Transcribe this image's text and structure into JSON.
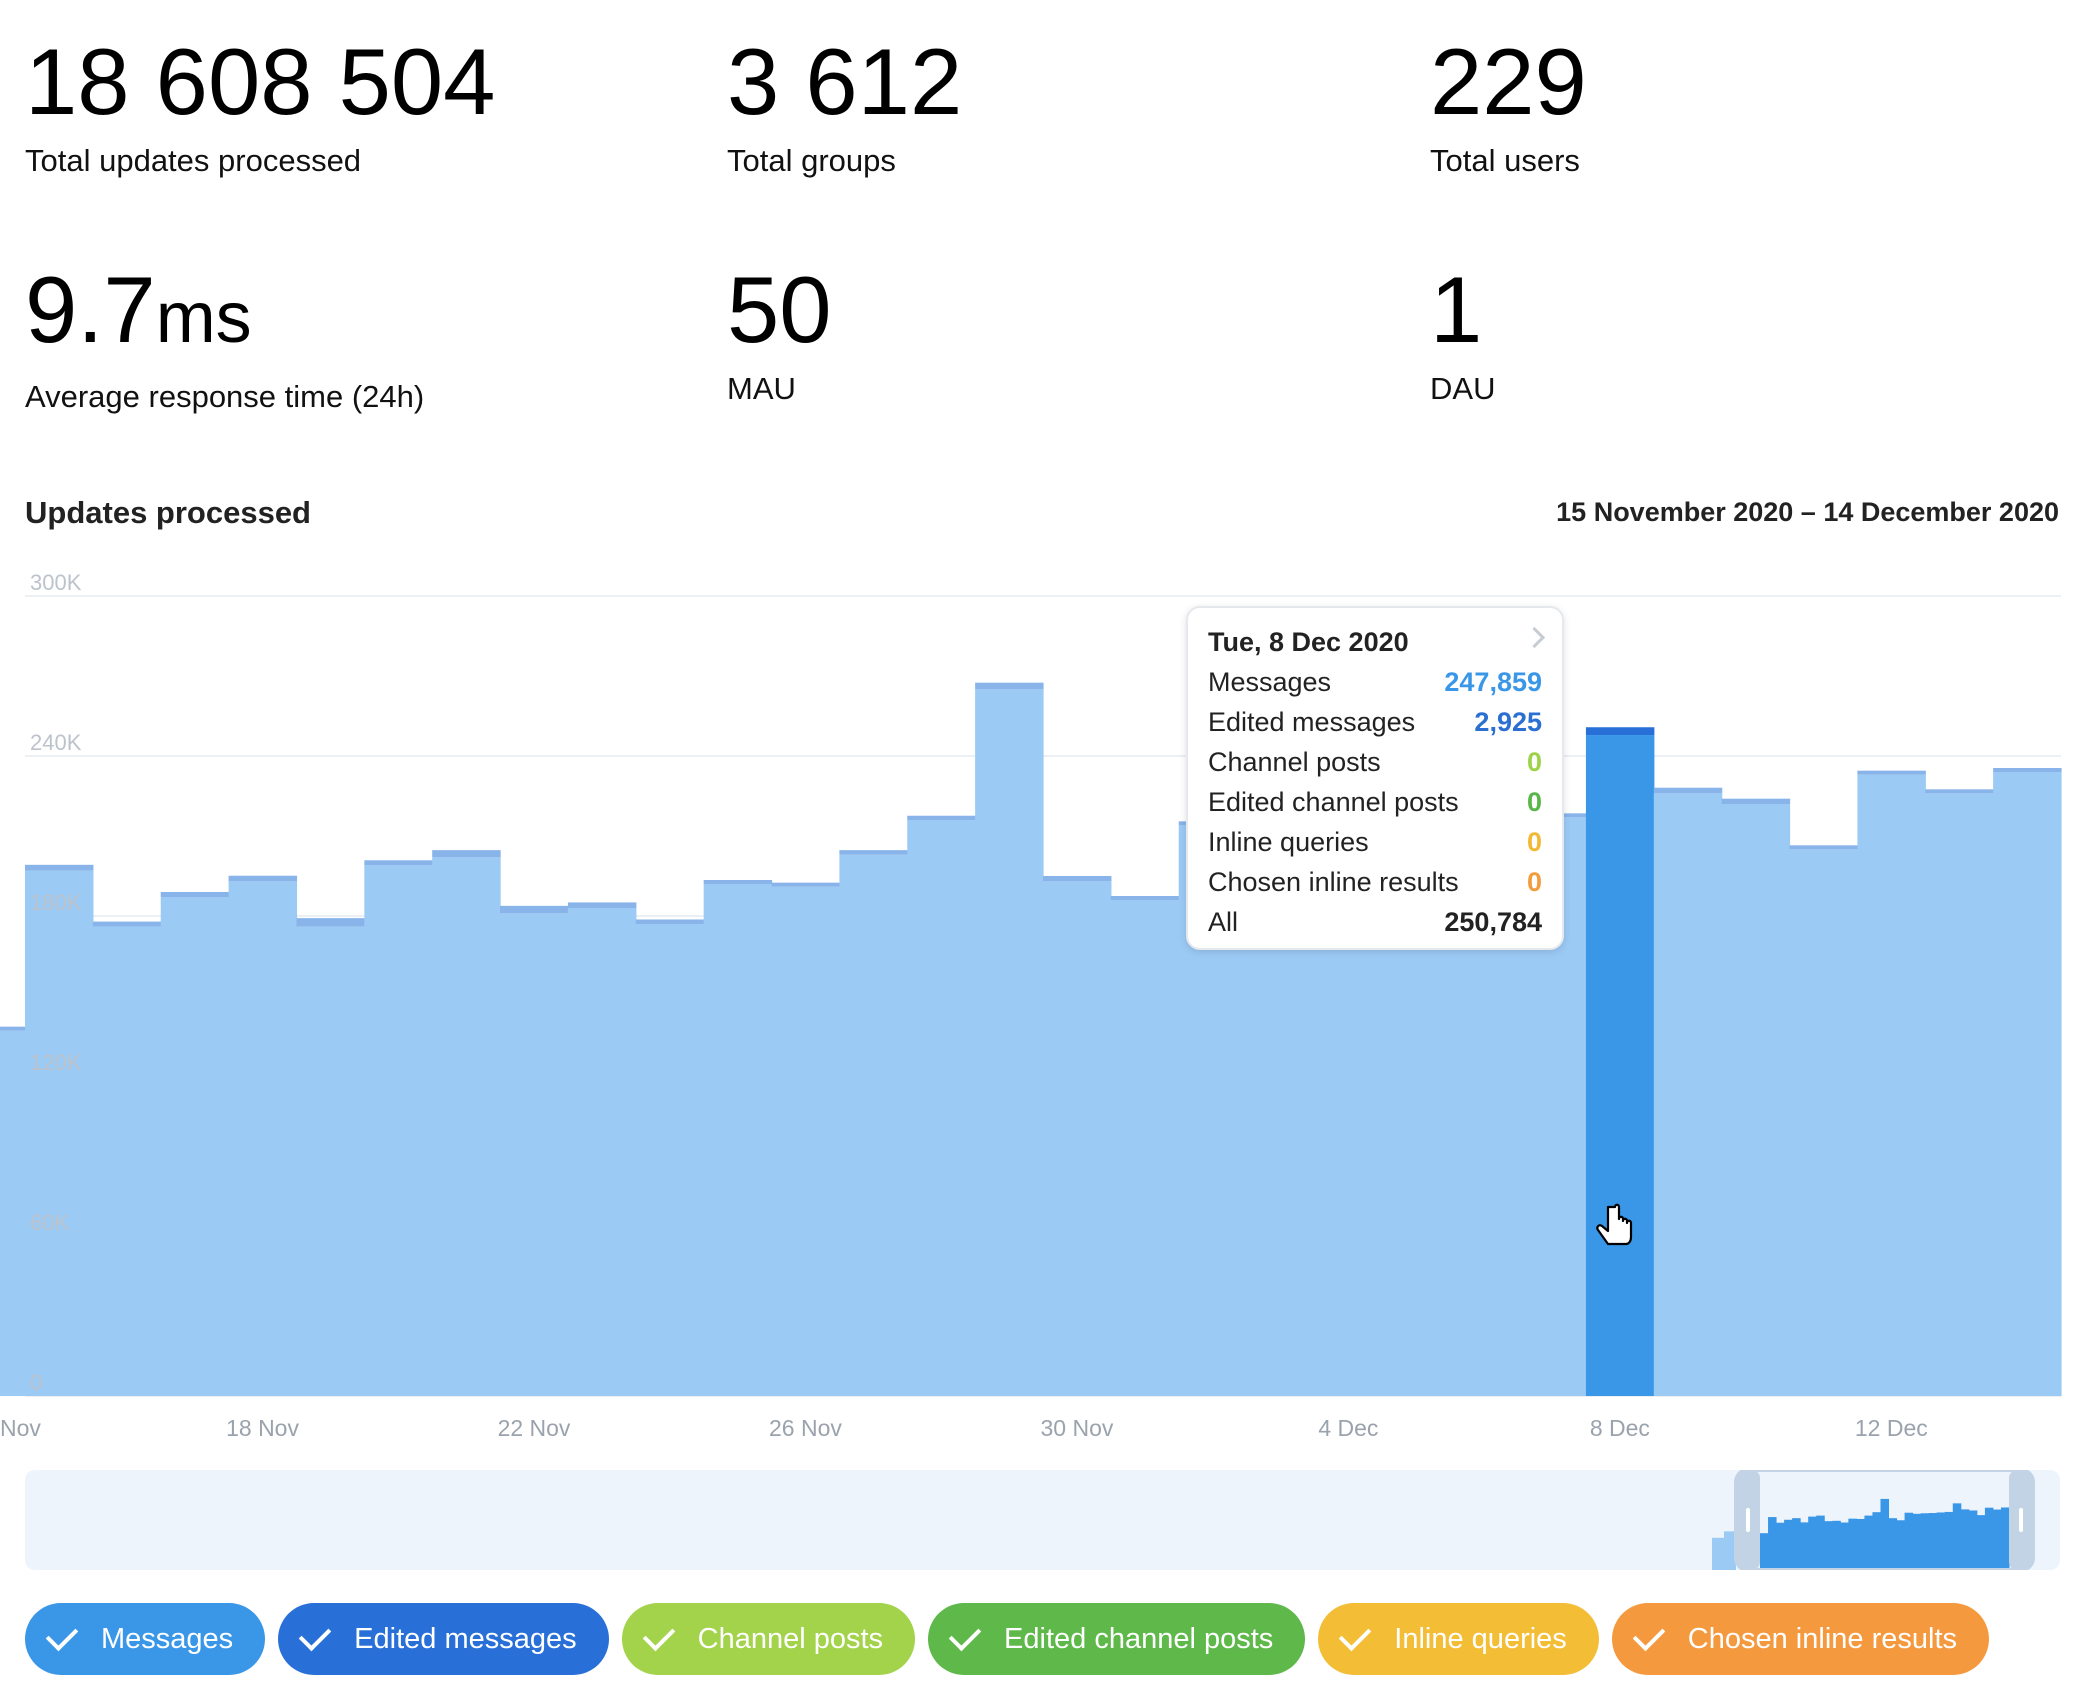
{
  "stats": {
    "total_updates": {
      "value": "18 608 504",
      "label": "Total updates processed"
    },
    "total_groups": {
      "value": "3 612",
      "label": "Total groups"
    },
    "total_users": {
      "value": "229",
      "label": "Total users"
    },
    "avg_response": {
      "value": "9.7",
      "unit": "ms",
      "label": "Average response time (24h)"
    },
    "mau": {
      "value": "50",
      "label": "MAU"
    },
    "dau": {
      "value": "1",
      "label": "DAU"
    }
  },
  "chart_title": "Updates processed",
  "date_range": "15 November 2020 – 14 December 2020",
  "tooltip": {
    "date": "Tue, 8 Dec 2020",
    "rows": [
      {
        "label": "Messages",
        "value": "247,859",
        "color": "#3a97e8"
      },
      {
        "label": "Edited messages",
        "value": "2,925",
        "color": "#2b6fd3"
      },
      {
        "label": "Channel posts",
        "value": "0",
        "color": "#9ed249"
      },
      {
        "label": "Edited channel posts",
        "value": "0",
        "color": "#5ab54a"
      },
      {
        "label": "Inline queries",
        "value": "0",
        "color": "#f2b935"
      },
      {
        "label": "Chosen inline results",
        "value": "0",
        "color": "#f39c3e"
      },
      {
        "label": "All",
        "value": "250,784",
        "color": "#222222"
      }
    ]
  },
  "legend": [
    {
      "label": "Messages",
      "color": "#3a97e8"
    },
    {
      "label": "Edited messages",
      "color": "#2870d8"
    },
    {
      "label": "Channel posts",
      "color": "#a2d34a"
    },
    {
      "label": "Edited channel posts",
      "color": "#5eb84a"
    },
    {
      "label": "Inline queries",
      "color": "#f3bd35"
    },
    {
      "label": "Chosen inline results",
      "color": "#f5993f"
    }
  ],
  "chart_data": {
    "type": "bar",
    "title": "Updates processed",
    "x_tick_labels": [
      "Nov",
      "18 Nov",
      "22 Nov",
      "26 Nov",
      "30 Nov",
      "4 Dec",
      "8 Dec",
      "12 Dec"
    ],
    "y_tick_labels": [
      "0",
      "60K",
      "120K",
      "180K",
      "240K",
      "300K"
    ],
    "ylim": [
      0,
      300000
    ],
    "categories": [
      "14 Nov",
      "15 Nov",
      "16 Nov",
      "17 Nov",
      "18 Nov",
      "19 Nov",
      "20 Nov",
      "21 Nov",
      "22 Nov",
      "23 Nov",
      "24 Nov",
      "25 Nov",
      "26 Nov",
      "27 Nov",
      "28 Nov",
      "29 Nov",
      "30 Nov",
      "1 Dec",
      "2 Dec",
      "3 Dec",
      "4 Dec",
      "5 Dec",
      "6 Dec",
      "7 Dec",
      "8 Dec",
      "9 Dec",
      "10 Dec",
      "11 Dec",
      "12 Dec",
      "13 Dec",
      "14 Dec"
    ],
    "series": [
      {
        "name": "Messages",
        "values": [
          137000,
          197000,
          176000,
          187000,
          193000,
          176000,
          199000,
          202000,
          181000,
          183000,
          177000,
          192000,
          191000,
          203000,
          216000,
          265000,
          193000,
          186000,
          214000,
          210000,
          212000,
          213000,
          215000,
          217000,
          247859,
          226000,
          222000,
          205000,
          233000,
          226000,
          234000
        ]
      },
      {
        "name": "Edited messages",
        "values": [
          1500,
          2200,
          1900,
          2000,
          2100,
          3200,
          1900,
          2700,
          2800,
          2100,
          1700,
          1200,
          1000,
          1700,
          1600,
          2500,
          2000,
          1200,
          1500,
          1500,
          1500,
          1500,
          1500,
          1500,
          2925,
          2100,
          2000,
          1500,
          1500,
          1400,
          1300
        ]
      },
      {
        "name": "Channel posts",
        "values": [
          0,
          0,
          0,
          0,
          0,
          0,
          0,
          0,
          0,
          0,
          0,
          0,
          0,
          0,
          0,
          0,
          0,
          0,
          0,
          0,
          0,
          0,
          0,
          0,
          0,
          0,
          0,
          0,
          0,
          0,
          0
        ]
      },
      {
        "name": "Edited channel posts",
        "values": [
          0,
          0,
          0,
          0,
          0,
          0,
          0,
          0,
          0,
          0,
          0,
          0,
          0,
          0,
          0,
          0,
          0,
          0,
          0,
          0,
          0,
          0,
          0,
          0,
          0,
          0,
          0,
          0,
          0,
          0,
          0
        ]
      },
      {
        "name": "Inline queries",
        "values": [
          0,
          0,
          0,
          0,
          0,
          0,
          0,
          0,
          0,
          0,
          0,
          0,
          0,
          0,
          0,
          0,
          0,
          0,
          0,
          0,
          0,
          0,
          0,
          0,
          0,
          0,
          0,
          0,
          0,
          0,
          0
        ]
      },
      {
        "name": "Chosen inline results",
        "values": [
          0,
          0,
          0,
          0,
          0,
          0,
          0,
          0,
          0,
          0,
          0,
          0,
          0,
          0,
          0,
          0,
          0,
          0,
          0,
          0,
          0,
          0,
          0,
          0,
          0,
          0,
          0,
          0,
          0,
          0,
          0
        ]
      }
    ],
    "highlighted_category": "8 Dec",
    "grid": true,
    "colors": {
      "messages_faded": "#9bcaf5",
      "edited_faded": "#88b4ea",
      "messages_active": "#3a97e8",
      "edited_active": "#2870d8"
    }
  }
}
